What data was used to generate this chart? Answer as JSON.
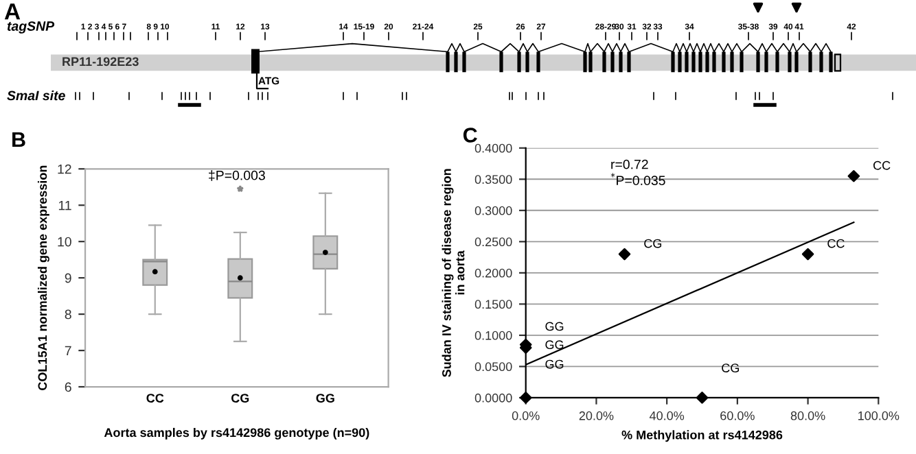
{
  "chart_data": [
    {
      "type": "other",
      "annotations": [
        "A",
        "tagSNP",
        "1 2 3 4 5 6 7",
        "8 9 10",
        "11",
        "12",
        "13",
        "14",
        "15-19",
        "20",
        "21-24",
        "25",
        "26",
        "27",
        "28-29",
        "30",
        "31",
        "32",
        "33",
        "34",
        "35-38",
        "39",
        "40",
        "41",
        "42",
        "RP11-192E23",
        "ATG",
        "SmaI site"
      ]
    },
    {
      "type": "box",
      "categories": [
        "CC",
        "CG",
        "GG"
      ],
      "xlabel": "Aorta samples by rs4142986 genotype (n=90)",
      "ylabel": "COL15A1 normalized gene expression",
      "ylim": [
        6,
        12
      ],
      "yticks": [
        6,
        7,
        8,
        9,
        10,
        11,
        12
      ],
      "grid": false,
      "annotations": [
        "B",
        "‡P=0.003"
      ],
      "series": [
        {
          "color": "#c8c8c8",
          "boxes": [
            {
              "low": 8.0,
              "q1": 8.8,
              "median": 9.45,
              "q3": 9.5,
              "high": 10.45,
              "mean": 9.17
            },
            {
              "low": 7.25,
              "q1": 8.45,
              "median": 8.9,
              "q3": 9.52,
              "high": 10.25,
              "mean": 9.0,
              "outliers": [
                11.45
              ]
            },
            {
              "low": 8.0,
              "q1": 9.25,
              "median": 9.65,
              "q3": 10.15,
              "high": 11.33,
              "mean": 9.7
            }
          ]
        }
      ]
    },
    {
      "type": "scatter",
      "xlabel": "% Methylation at rs4142986",
      "ylabel": "Sudan IV staining of disease region in aorta",
      "xlim": [
        0,
        100
      ],
      "ylim": [
        0,
        0.4
      ],
      "xticks": [
        {
          "value": 0,
          "label": "0.0%"
        },
        {
          "value": 20,
          "label": "20.0%"
        },
        {
          "value": 40,
          "label": "40.0%"
        },
        {
          "value": 60,
          "label": "60.0%"
        },
        {
          "value": 80,
          "label": "80.0%"
        },
        {
          "value": 100,
          "label": "100.0%"
        }
      ],
      "yticks": [
        {
          "value": 0,
          "label": "0.0000"
        },
        {
          "value": 0.05,
          "label": "0.0500"
        },
        {
          "value": 0.1,
          "label": "0.1000"
        },
        {
          "value": 0.15,
          "label": "0.1500"
        },
        {
          "value": 0.2,
          "label": "0.2000"
        },
        {
          "value": 0.25,
          "label": "0.2500"
        },
        {
          "value": 0.3,
          "label": "0.3000"
        },
        {
          "value": 0.35,
          "label": "0.3500"
        },
        {
          "value": 0.4,
          "label": "0.4000"
        }
      ],
      "grid": "y",
      "annotations": [
        "C",
        "r=0.72",
        "$^{*}$P=0.035"
      ],
      "series": [
        {
          "type": "scatter",
          "marker": "diamond",
          "color": "#000000",
          "x": [
            0,
            0,
            0,
            28,
            50,
            80,
            93
          ],
          "values": [
            0.085,
            0.08,
            0.0,
            0.23,
            0.0,
            0.23,
            0.355
          ],
          "value_labels": [
            "GG",
            "GG",
            "GG",
            "CG",
            "CG",
            "CC",
            "CC"
          ]
        },
        {
          "type": "line",
          "color": "#000000",
          "x": [
            0,
            93
          ],
          "values": [
            0.053,
            0.281
          ]
        }
      ]
    }
  ]
}
